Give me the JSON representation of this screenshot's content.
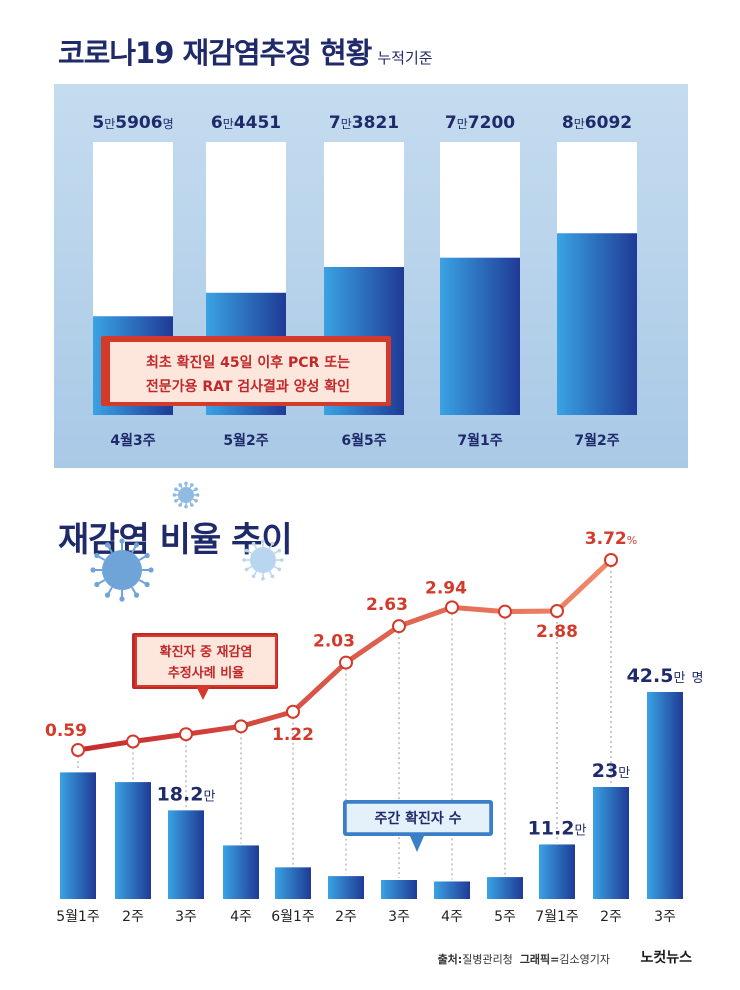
{
  "top_chart": {
    "title": "코로나19 재감염추정 현황",
    "title_note": "누적기준",
    "callout_line1": "최초 확진일 45일 이후 PCR 또는",
    "callout_line2": "전문가용 RAT 검사결과 양성 확인"
  },
  "bottom_chart": {
    "title": "재감염 비율 추이",
    "line_label_1": "확진자 중 재감염",
    "line_label_2": "추정사례 비율",
    "bar_label": "주간 확진자 수",
    "rate_unit": "%",
    "bar_unit": "만",
    "bar_unit_suffix": "명"
  },
  "source": {
    "source_label": "출처:",
    "source_text": "질병관리청",
    "graphic_label": "그래픽=",
    "graphic_text": "김소영기자",
    "logo": "노컷뉴스"
  },
  "colors": {
    "navy": "#1f2a6b",
    "red": "#d43a2c",
    "bar_light": "#3aa3e3",
    "bar_dark": "#1f3a96"
  },
  "chart_data": [
    {
      "type": "bar",
      "title": "코로나19 재감염추정 현황",
      "categories": [
        "4월3주",
        "5월2주",
        "6월5주",
        "7월1주",
        "7월2주"
      ],
      "values": [
        55906,
        64451,
        73821,
        77200,
        86092
      ],
      "value_labels": [
        {
          "a": "5",
          "b": "만",
          "c": "5906",
          "d": "명"
        },
        {
          "a": "6",
          "b": "만",
          "c": "4451",
          "d": ""
        },
        {
          "a": "7",
          "b": "만",
          "c": "3821",
          "d": ""
        },
        {
          "a": "7",
          "b": "만",
          "c": "7200",
          "d": ""
        },
        {
          "a": "8",
          "b": "만",
          "c": "6092",
          "d": ""
        }
      ],
      "ylim": [
        0,
        100000
      ]
    },
    {
      "type": "bar",
      "title": "재감염 비율 추이",
      "categories": [
        "5월1주",
        "2주",
        "3주",
        "4주",
        "6월1주",
        "2주",
        "3주",
        "4주",
        "5주",
        "7월1주",
        "2주",
        "3주"
      ],
      "series": [
        {
          "name": "주간 확진자 수",
          "unit": "만 명",
          "values": [
            26.0,
            24.0,
            18.2,
            11.0,
            6.5,
            4.7,
            3.9,
            3.6,
            4.5,
            11.2,
            23.0,
            42.5
          ]
        },
        {
          "name": "확진자 중 재감염 추정사례 비율",
          "type": "line",
          "unit": "%",
          "values": [
            0.59,
            0.73,
            0.85,
            0.98,
            1.22,
            2.03,
            2.63,
            2.94,
            2.87,
            2.88,
            3.72,
            null
          ]
        }
      ],
      "rate_labels": [
        {
          "index": 0,
          "text": "0.59"
        },
        {
          "index": 4,
          "text": "1.22"
        },
        {
          "index": 5,
          "text": "2.03"
        },
        {
          "index": 6,
          "text": "2.63"
        },
        {
          "index": 7,
          "text": "2.94"
        },
        {
          "index": 9,
          "text": "2.88"
        },
        {
          "index": 10,
          "text": "3.72"
        }
      ],
      "bar_labels": [
        {
          "index": 2,
          "text": "18.2"
        },
        {
          "index": 9,
          "text": "11.2"
        },
        {
          "index": 10,
          "text": "23"
        },
        {
          "index": 11,
          "text": "42.5"
        }
      ]
    }
  ]
}
